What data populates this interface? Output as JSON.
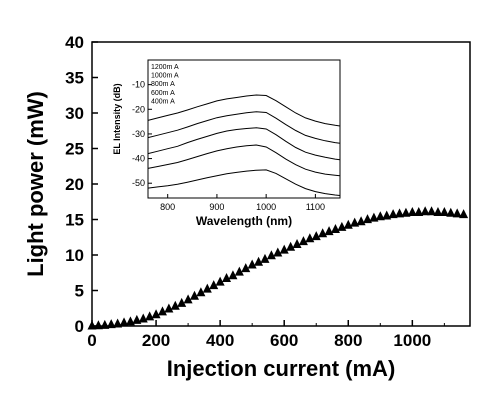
{
  "chart_data": [
    {
      "type": "scatter",
      "xlabel": "Injection current (mA)",
      "ylabel": "Light power (mW)",
      "xlim": [
        0,
        1180
      ],
      "ylim": [
        0,
        40
      ],
      "xticks": [
        0,
        200,
        400,
        600,
        800,
        1000
      ],
      "yticks": [
        0,
        5,
        10,
        15,
        20,
        25,
        30,
        35,
        40
      ],
      "xtick_labels": [
        "0",
        "200",
        "400",
        "600",
        "800",
        "1000"
      ],
      "ytick_labels": [
        "0",
        "5",
        "10",
        "15",
        "20",
        "25",
        "30",
        "35",
        "40"
      ],
      "marker": "triangle",
      "series": [
        {
          "x": [
            0,
            20,
            40,
            60,
            80,
            100,
            120,
            140,
            160,
            180,
            200,
            220,
            240,
            260,
            280,
            300,
            320,
            340,
            360,
            380,
            400,
            420,
            440,
            460,
            480,
            500,
            520,
            540,
            560,
            580,
            600,
            620,
            640,
            660,
            680,
            700,
            720,
            740,
            760,
            780,
            800,
            820,
            840,
            860,
            880,
            900,
            920,
            940,
            960,
            980,
            1000,
            1020,
            1040,
            1060,
            1080,
            1100,
            1120,
            1140,
            1160
          ],
          "y": [
            0.02,
            0.05,
            0.1,
            0.2,
            0.3,
            0.45,
            0.6,
            0.8,
            1.0,
            1.3,
            1.6,
            2.0,
            2.4,
            2.8,
            3.2,
            3.7,
            4.2,
            4.7,
            5.2,
            5.7,
            6.2,
            6.7,
            7.1,
            7.6,
            8.1,
            8.6,
            9.0,
            9.4,
            9.9,
            10.3,
            10.7,
            11.1,
            11.5,
            11.9,
            12.3,
            12.6,
            13.0,
            13.3,
            13.6,
            13.9,
            14.2,
            14.5,
            14.7,
            15.0,
            15.2,
            15.4,
            15.5,
            15.7,
            15.8,
            15.9,
            16.0,
            16.0,
            16.1,
            16.1,
            16.0,
            16.0,
            15.9,
            15.8,
            15.7
          ]
        }
      ]
    },
    {
      "type": "line",
      "xlabel": "Wavelength (nm)",
      "ylabel": "EL Intensity (dB)",
      "xlim": [
        760,
        1150
      ],
      "ylim": [
        -56,
        0
      ],
      "xticks": [
        800,
        900,
        1000,
        1100
      ],
      "yticks": [
        -50,
        -40,
        -30,
        -20,
        -10
      ],
      "xtick_labels": [
        "800",
        "900",
        "1000",
        "1100"
      ],
      "ytick_labels": [
        "-50",
        "-40",
        "-30",
        "-20",
        "-10"
      ],
      "legend": "top-left",
      "x": [
        760,
        780,
        800,
        820,
        840,
        860,
        880,
        900,
        920,
        940,
        960,
        980,
        1000,
        1020,
        1040,
        1060,
        1080,
        1100,
        1120,
        1140,
        1150
      ],
      "series": [
        {
          "name": "1200m A",
          "values": [
            -24.5,
            -23.5,
            -22.5,
            -21.5,
            -20.3,
            -19.0,
            -17.8,
            -16.6,
            -15.8,
            -15.2,
            -14.6,
            -14.2,
            -14.4,
            -16.5,
            -19.0,
            -21.5,
            -23.5,
            -24.8,
            -25.8,
            -26.5,
            -26.8
          ]
        },
        {
          "name": "1000m A",
          "values": [
            -31.5,
            -30.5,
            -29.5,
            -28.5,
            -27.2,
            -25.8,
            -24.6,
            -23.4,
            -22.6,
            -22.0,
            -21.4,
            -21.0,
            -21.3,
            -23.6,
            -26.2,
            -28.6,
            -30.6,
            -31.8,
            -32.8,
            -33.5,
            -33.8
          ]
        },
        {
          "name": "800m A",
          "values": [
            -38.0,
            -37.0,
            -36.0,
            -35.0,
            -33.5,
            -32.2,
            -31.0,
            -29.8,
            -28.8,
            -28.2,
            -27.8,
            -27.5,
            -28.0,
            -30.3,
            -33.0,
            -35.5,
            -37.4,
            -38.6,
            -39.5,
            -40.2,
            -40.5
          ]
        },
        {
          "name": "600m A",
          "values": [
            -44.0,
            -43.2,
            -42.4,
            -41.6,
            -40.4,
            -39.2,
            -38.0,
            -36.9,
            -36.0,
            -35.3,
            -34.8,
            -34.5,
            -35.3,
            -37.6,
            -40.2,
            -42.5,
            -44.3,
            -45.5,
            -46.3,
            -46.8,
            -47.0
          ]
        },
        {
          "name": "400m A",
          "values": [
            -52.0,
            -51.5,
            -51.0,
            -50.4,
            -49.6,
            -48.7,
            -47.8,
            -47.0,
            -46.2,
            -45.6,
            -45.1,
            -44.7,
            -44.6,
            -46.0,
            -48.2,
            -50.4,
            -52.2,
            -53.4,
            -54.2,
            -54.8,
            -55.0
          ]
        }
      ]
    }
  ]
}
